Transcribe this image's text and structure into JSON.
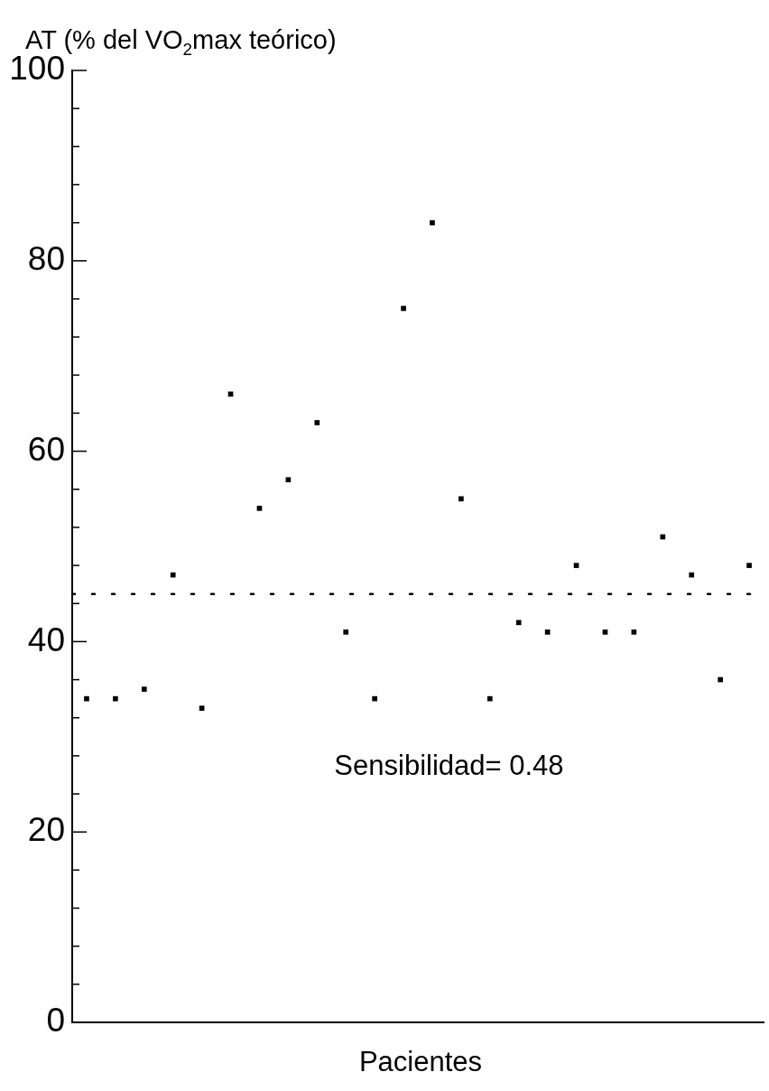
{
  "chart_data": {
    "type": "scatter",
    "ylabel": "AT (% del VO$_{2}$max teórico)",
    "xlabel": "Pacientes",
    "categories": [
      null,
      null,
      null,
      null,
      null,
      null,
      null,
      null,
      null,
      null,
      null,
      null,
      null,
      null,
      null,
      null,
      null,
      null,
      null,
      null,
      null,
      null,
      null,
      null
    ],
    "series": [
      {
        "color": "#000000",
        "values": [
          34,
          34,
          35,
          47,
          33,
          66,
          54,
          57,
          63,
          41,
          34,
          75,
          84,
          55,
          34,
          42,
          41,
          48,
          41,
          41,
          51,
          47,
          36,
          48
        ]
      }
    ],
    "ylim": [
      0,
      100
    ],
    "yticks": [
      0,
      {
        "value": 4,
        "label": null
      },
      {
        "value": 8,
        "label": null
      },
      {
        "value": 12,
        "label": null
      },
      {
        "value": 16,
        "label": null
      },
      20,
      {
        "value": 24,
        "label": null
      },
      {
        "value": 28,
        "label": null
      },
      {
        "value": 32,
        "label": null
      },
      {
        "value": 36,
        "label": null
      },
      40,
      {
        "value": 44,
        "label": null
      },
      {
        "value": 48,
        "label": null
      },
      {
        "value": 52,
        "label": null
      },
      {
        "value": 56,
        "label": null
      },
      60,
      {
        "value": 64,
        "label": null
      },
      {
        "value": 68,
        "label": null
      },
      {
        "value": 72,
        "label": null
      },
      {
        "value": 76,
        "label": null
      },
      80,
      {
        "value": 84,
        "label": null
      },
      {
        "value": 88,
        "label": null
      },
      {
        "value": 92,
        "label": null
      },
      {
        "value": 96,
        "label": null
      },
      100
    ],
    "ref_lines": [
      {
        "axis": "y",
        "value": 45,
        "color": "#000000",
        "line_style": "dotted"
      }
    ],
    "annotations": [
      "Sensibilidad= 0.48"
    ],
    "grid": false,
    "legend": false,
    "marker": "square",
    "tick_labels": "y"
  }
}
